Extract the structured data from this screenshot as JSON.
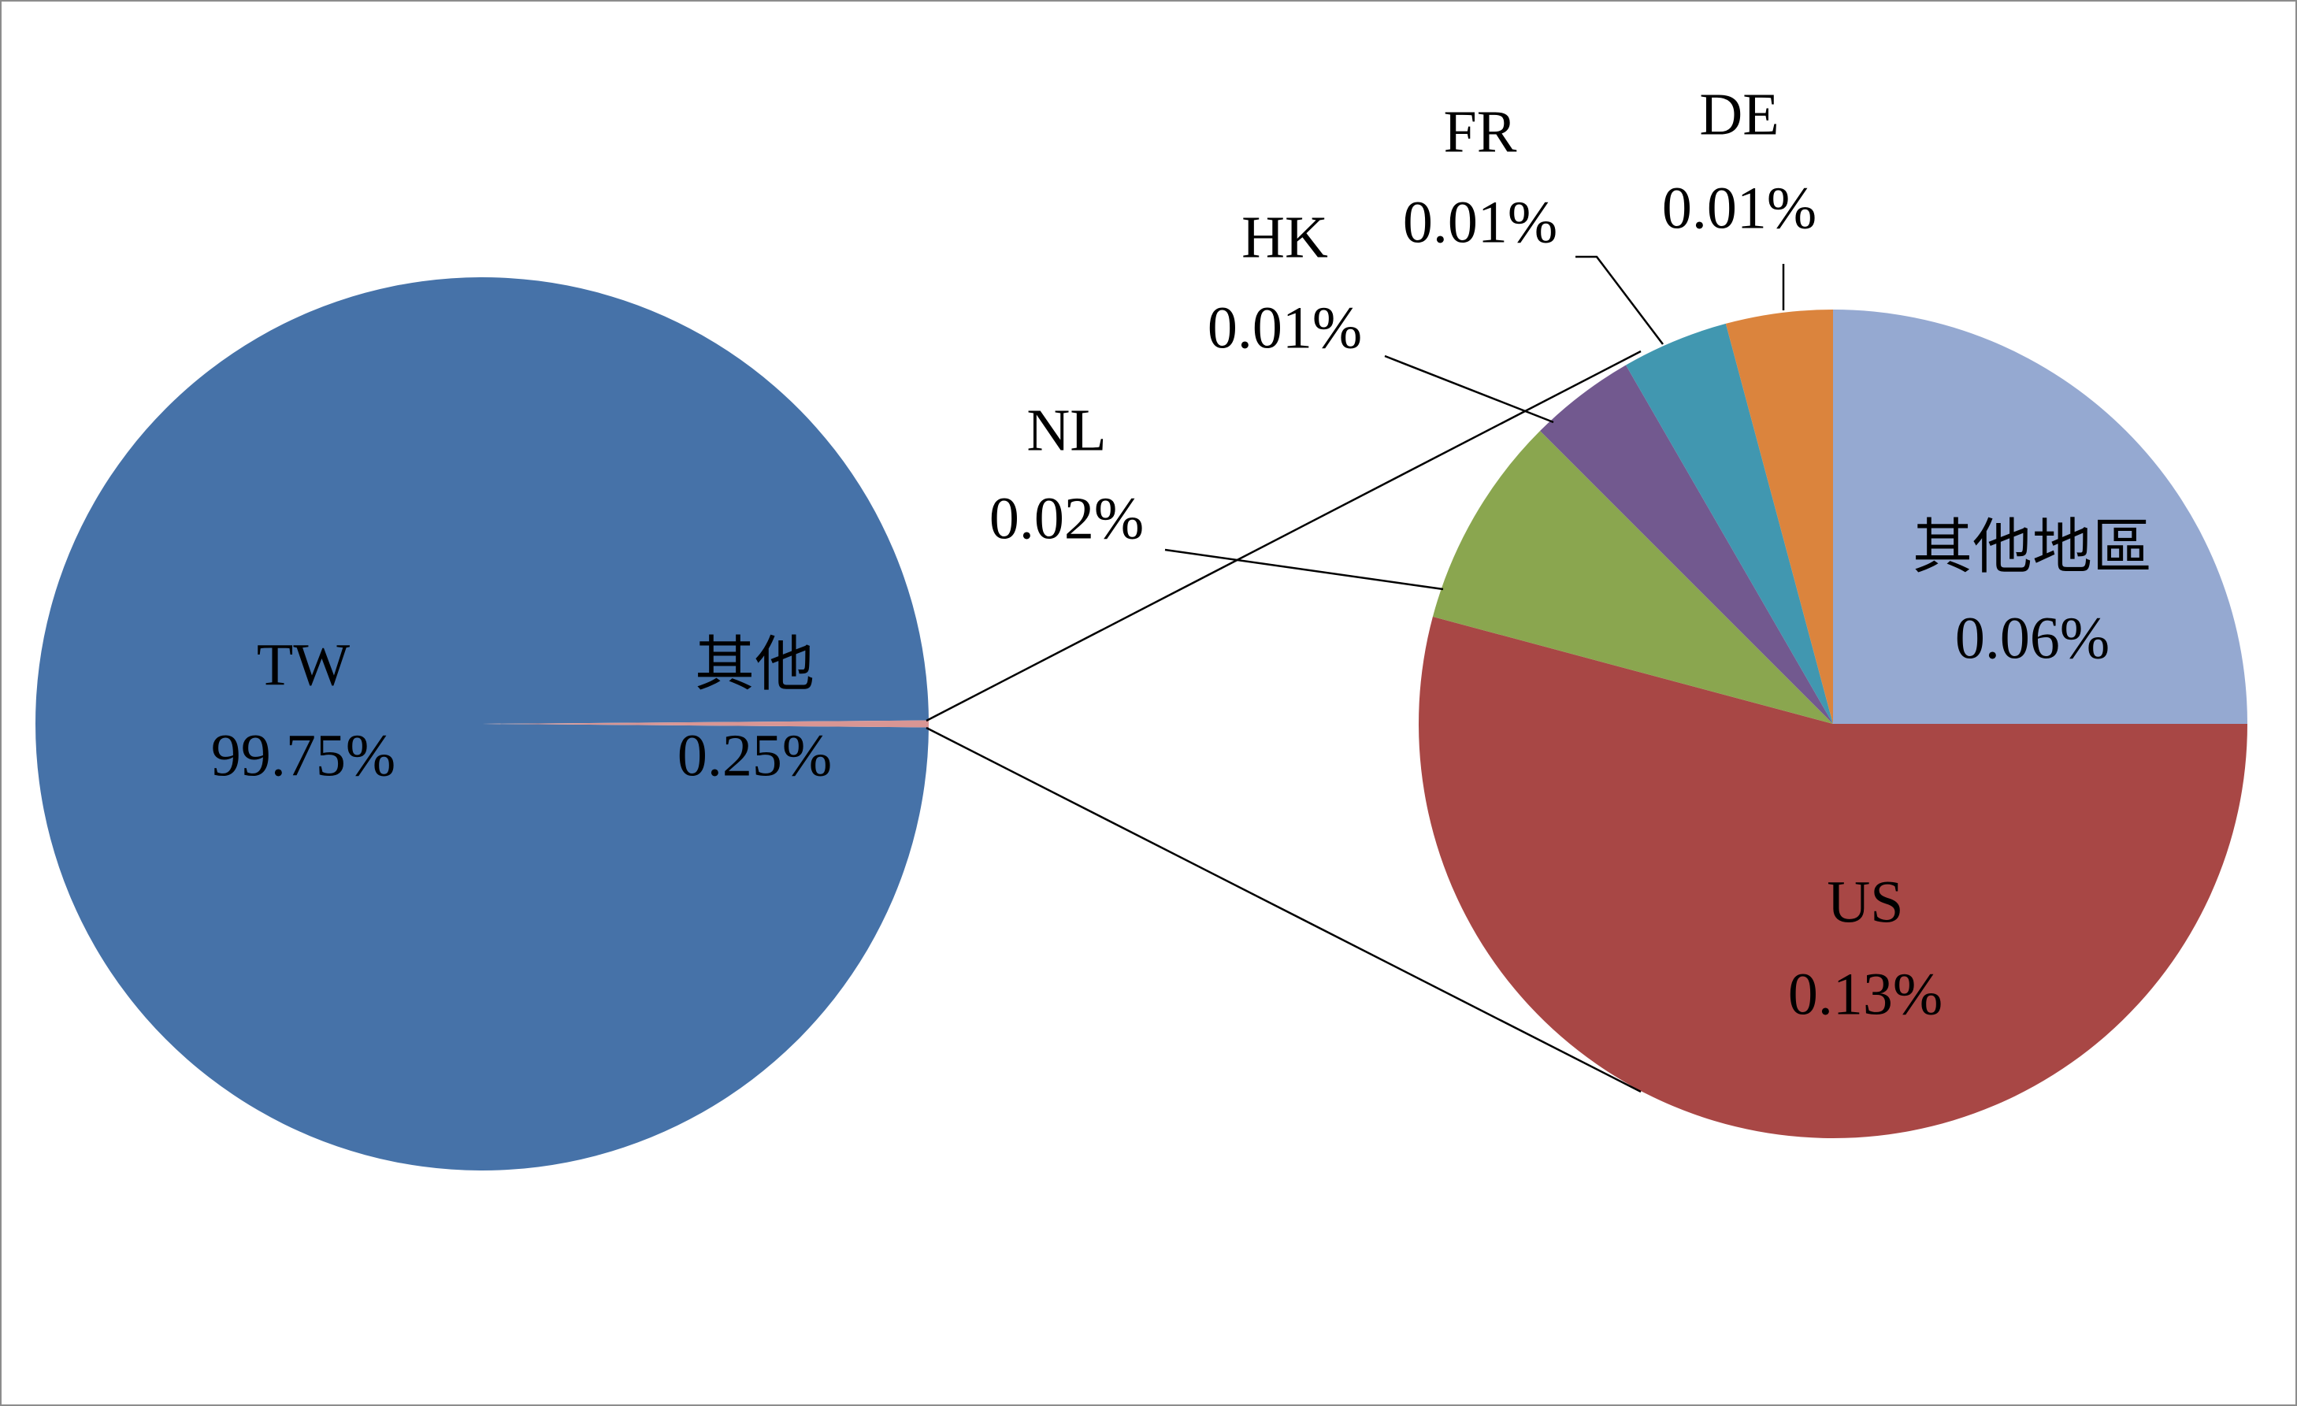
{
  "chart_data": [
    {
      "type": "pie",
      "categories": [
        "TW",
        "其他"
      ],
      "values": [
        99.75,
        0.25
      ],
      "value_labels": [
        "99.75%",
        "0.25%"
      ],
      "colors": [
        "#4672a8",
        "#d99694"
      ]
    },
    {
      "type": "pie",
      "categories": [
        "其他地區",
        "US",
        "NL",
        "HK",
        "FR",
        "DE"
      ],
      "values": [
        0.06,
        0.13,
        0.02,
        0.01,
        0.01,
        0.01
      ],
      "value_labels": [
        "0.06%",
        "0.13%",
        "0.02%",
        "0.01%",
        "0.01%",
        "0.01%"
      ],
      "colors": [
        "#95a9d1",
        "#a84745",
        "#8aa64f",
        "#72598f",
        "#4197b0",
        "#db843d"
      ]
    }
  ]
}
